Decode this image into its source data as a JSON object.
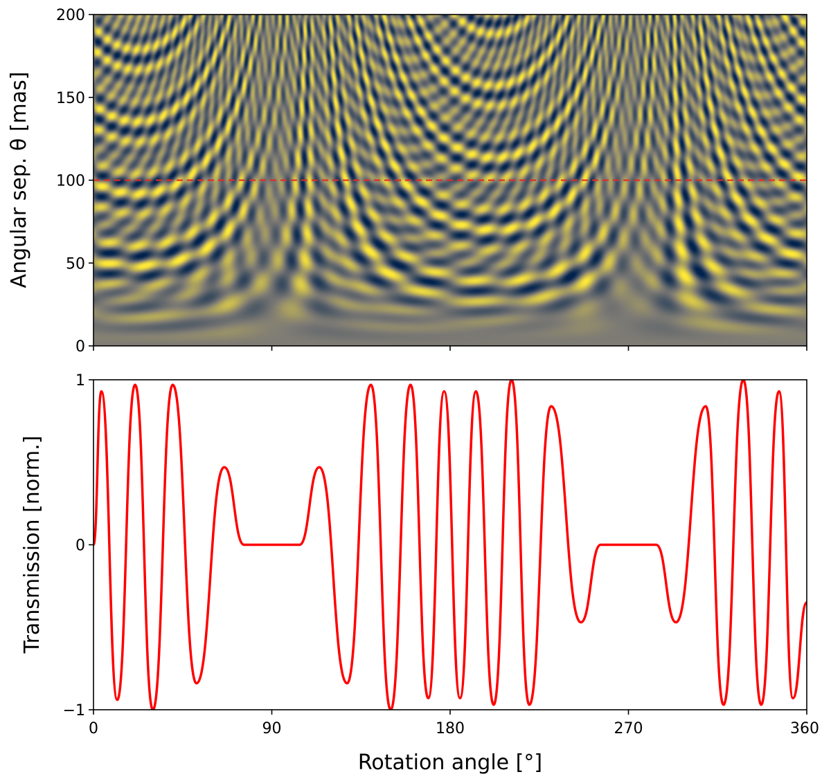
{
  "chart_data": [
    {
      "type": "heatmap",
      "ylabel": "Angular sep. θ [mas]",
      "xlim": [
        0,
        360
      ],
      "ylim": [
        0,
        200
      ],
      "x_ticks": [
        0,
        90,
        180,
        270,
        360
      ],
      "x_tick_labels_shown": false,
      "y_ticks": [
        0,
        50,
        100,
        150,
        200
      ],
      "y_tick_labels": [
        "0",
        "50",
        "100",
        "150",
        "200"
      ],
      "colormap": [
        "#00224e",
        "#7f7c75",
        "#fee838"
      ],
      "background_value_color": "#7f7c75",
      "reference_line": {
        "y": 100,
        "style": "dashed",
        "color": "#e8281f"
      }
    },
    {
      "type": "line",
      "xlabel": "Rotation angle [°]",
      "ylabel": "Transmission [norm.]",
      "xlim": [
        0,
        360
      ],
      "ylim": [
        -1,
        1
      ],
      "x_ticks": [
        0,
        90,
        180,
        270,
        360
      ],
      "x_tick_labels": [
        "0",
        "90",
        "180",
        "270",
        "360"
      ],
      "y_ticks": [
        -1,
        0,
        1
      ],
      "y_tick_labels": [
        "−1",
        "0",
        "1"
      ],
      "grid": false,
      "series": [
        {
          "color": "#ff0000",
          "x": [
            0,
            4,
            12,
            21,
            30,
            40,
            52,
            66,
            76,
            90,
            104,
            114,
            128,
            140,
            150,
            160,
            169,
            177,
            185,
            193,
            202,
            211,
            220,
            231,
            246,
            256,
            270,
            284,
            294,
            309,
            318,
            328,
            337,
            346,
            353,
            360
          ],
          "y": [
            0.0,
            0.93,
            -0.94,
            0.97,
            -1.0,
            0.97,
            -0.84,
            0.47,
            0.0,
            0.0,
            0.0,
            0.47,
            -0.84,
            0.97,
            -1.0,
            0.97,
            -0.93,
            0.93,
            -0.93,
            0.93,
            -0.97,
            1.0,
            -0.97,
            0.84,
            -0.47,
            0.0,
            0.0,
            0.0,
            -0.47,
            0.84,
            -0.97,
            1.0,
            -0.97,
            0.93,
            -0.93,
            -0.35
          ]
        }
      ]
    }
  ]
}
